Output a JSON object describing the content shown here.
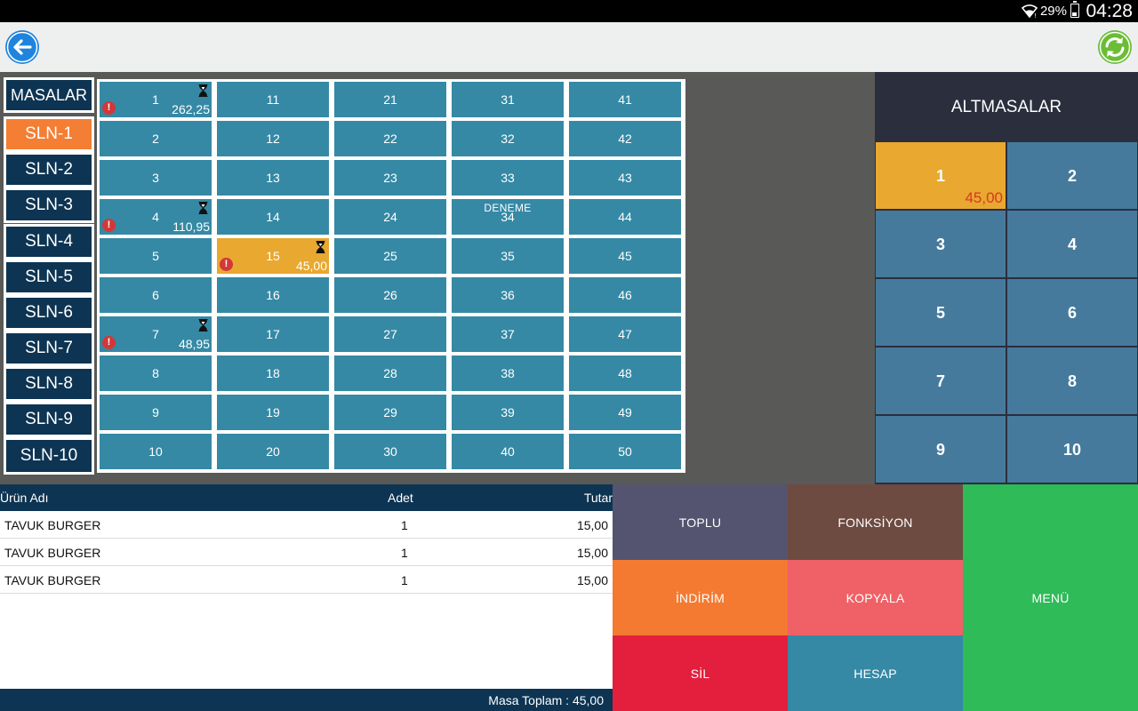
{
  "status_bar": {
    "battery": "29%",
    "time": "04:28"
  },
  "sections": [
    {
      "label": "MASALAR",
      "active": false
    },
    {
      "label": "SLN-1",
      "active": true
    },
    {
      "label": "SLN-2",
      "active": false
    },
    {
      "label": "SLN-3",
      "active": false
    },
    {
      "label": "SLN-4",
      "active": false
    },
    {
      "label": "SLN-5",
      "active": false
    },
    {
      "label": "SLN-6",
      "active": false
    },
    {
      "label": "SLN-7",
      "active": false
    },
    {
      "label": "SLN-8",
      "active": false
    },
    {
      "label": "SLN-9",
      "active": false
    },
    {
      "label": "SLN-10",
      "active": false
    }
  ],
  "tables": {
    "count": 50,
    "details": {
      "1": {
        "amount": "262,25",
        "busy": true,
        "alert": true
      },
      "4": {
        "amount": "110,95",
        "busy": true,
        "alert": true
      },
      "7": {
        "amount": "48,95",
        "busy": true,
        "alert": true
      },
      "15": {
        "amount": "45,00",
        "busy": true,
        "alert": true,
        "selected": true
      },
      "34": {
        "label": "DENEME"
      }
    }
  },
  "sub_tables": {
    "title": "ALTMASALAR",
    "items": [
      {
        "num": "1",
        "amount": "45,00",
        "selected": true
      },
      {
        "num": "2"
      },
      {
        "num": "3"
      },
      {
        "num": "4"
      },
      {
        "num": "5"
      },
      {
        "num": "6"
      },
      {
        "num": "7"
      },
      {
        "num": "8"
      },
      {
        "num": "9"
      },
      {
        "num": "10"
      }
    ]
  },
  "order": {
    "headers": {
      "name": "Ürün Adı",
      "qty": "Adet",
      "total": "Tutar"
    },
    "rows": [
      {
        "name": "TAVUK BURGER",
        "qty": "1",
        "total": "15,00"
      },
      {
        "name": "TAVUK BURGER",
        "qty": "1",
        "total": "15,00"
      },
      {
        "name": "TAVUK BURGER",
        "qty": "1",
        "total": "15,00"
      }
    ],
    "footer": "Masa Toplam : 45,00"
  },
  "actions": {
    "toplu": "TOPLU",
    "fonksiyon": "FONKSİYON",
    "menu": "MENÜ",
    "indirim": "İNDİRİM",
    "kopyala": "KOPYALA",
    "sil": "SİL",
    "hesap": "HESAP"
  },
  "colors": {
    "toplu": "#545470",
    "fonksiyon": "#6d4b40",
    "menu": "#2ebb58",
    "indirim": "#f47a31",
    "kopyala": "#ef6166",
    "sil": "#e31f3d",
    "hesap": "#3589a5"
  }
}
